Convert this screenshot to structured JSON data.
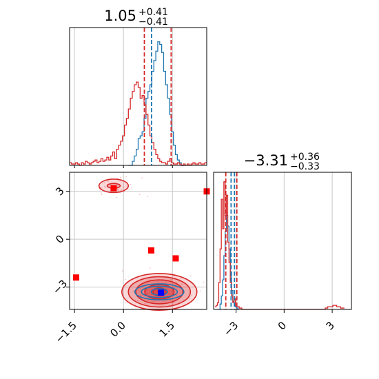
{
  "chart_data": [
    {
      "type": "histogram",
      "panel": "marginal-x",
      "title": {
        "main": "1.05",
        "plus": "+0.41",
        "minus": "−0.41"
      },
      "xlim": [
        -1.65,
        2.55
      ],
      "quantile_lines": {
        "red": [
          0.64,
          1.46
        ],
        "blue": [
          0.86
        ]
      },
      "series": [
        {
          "color": "#1f77b4",
          "bin_width": 0.06,
          "start": 0.15,
          "values": [
            0,
            0,
            0.03,
            0.07,
            0.12,
            0.2,
            0.22,
            0.25,
            0.35,
            0.5,
            0.55,
            0.6,
            0.7,
            0.78,
            0.85,
            0.92,
            0.9,
            0.84,
            0.7,
            0.6,
            0.5,
            0.38,
            0.25,
            0.15,
            0.08,
            0.04,
            0.02,
            0,
            0
          ]
        },
        {
          "color": "#d62728",
          "bin_width": 0.06,
          "start": -1.65,
          "values": [
            0.02,
            0.01,
            0.01,
            0.02,
            0.01,
            0,
            0.02,
            0.01,
            0.03,
            0.02,
            0.01,
            0.02,
            0.03,
            0.04,
            0.02,
            0.03,
            0.05,
            0.03,
            0.04,
            0.06,
            0.04,
            0.07,
            0.1,
            0.05,
            0.12,
            0.15,
            0.18,
            0.22,
            0.3,
            0.35,
            0.42,
            0.5,
            0.55,
            0.6,
            0.62,
            0.58,
            0.5,
            0.52,
            0.45,
            0.38,
            0.3,
            0.22,
            0.17,
            0.12,
            0.08,
            0.05,
            0.03,
            0.02,
            0.02,
            0.01,
            0.03,
            0.05,
            0.02,
            0.01,
            0.01,
            0.02,
            0.01,
            0,
            0.01,
            0,
            0.01,
            0,
            0.01,
            0.02,
            0.01,
            0.01,
            0.02,
            0.01,
            0.01,
            0.02
          ]
        }
      ]
    },
    {
      "type": "histogram",
      "panel": "marginal-y",
      "title": {
        "main": "−3.31",
        "plus": "+0.36",
        "minus": "−0.33"
      },
      "xlim": [
        -4.4,
        4.2
      ],
      "quantile_lines": {
        "red": [
          -3.64,
          -2.95
        ],
        "blue": [
          -3.31,
          -3.1
        ]
      },
      "series": [
        {
          "color": "#1f77b4",
          "bin_width": 0.08,
          "start": -4.08,
          "values": [
            0,
            0.04,
            0.1,
            0.22,
            0.4,
            0.58,
            0.7,
            0.62,
            0.45,
            0.28,
            0.14,
            0.06,
            0.03,
            0.02,
            0.01,
            0
          ]
        },
        {
          "color": "#d62728",
          "bin_width": 0.08,
          "start": -4.32,
          "values": [
            0.02,
            0.03,
            0.05,
            0.2,
            0.45,
            0.82,
            0.6,
            0.95,
            0.7,
            0.85,
            0.5,
            0.35,
            0.2,
            0.1,
            0.05,
            0.08,
            0.03,
            0.02,
            0.02,
            0.01,
            0.01,
            0,
            0,
            0,
            0,
            0,
            0,
            0,
            0,
            0,
            0,
            0,
            0,
            0,
            0,
            0,
            0,
            0,
            0,
            0,
            0,
            0,
            0,
            0,
            0,
            0,
            0,
            0,
            0,
            0,
            0,
            0,
            0,
            0,
            0,
            0,
            0,
            0,
            0,
            0,
            0,
            0,
            0,
            0,
            0,
            0,
            0,
            0,
            0,
            0,
            0,
            0,
            0,
            0,
            0,
            0,
            0,
            0,
            0,
            0,
            0,
            0,
            0,
            0,
            0,
            0,
            0.01,
            0.01,
            0.02,
            0.02,
            0.02,
            0.02,
            0.03,
            0.03,
            0.03,
            0.02,
            0.02,
            0.02,
            0.01,
            0.01,
            0.01
          ]
        }
      ]
    },
    {
      "type": "scatter",
      "panel": "joint",
      "xlim": [
        -1.65,
        2.55
      ],
      "ylim": [
        -4.4,
        4.2
      ],
      "xticks": [
        "−1.5",
        "0.0",
        "1.5"
      ],
      "xtick_values": [
        -1.5,
        0.0,
        1.5
      ],
      "yticks": [
        "−3",
        "0",
        "3"
      ],
      "ytick_values": [
        -3,
        0,
        3
      ],
      "contours": [
        {
          "color": "#d62728",
          "center": [
            1.1,
            -3.3
          ],
          "rx": [
            0.2,
            0.45,
            0.72,
            0.95,
            1.15
          ],
          "ry": [
            0.25,
            0.45,
            0.75,
            0.95,
            1.15
          ],
          "filled": true
        },
        {
          "color": "#1f77b4",
          "center": [
            1.1,
            -3.3
          ],
          "rx": [
            0.25,
            0.55,
            0.75
          ],
          "ry": [
            0.2,
            0.35,
            0.5
          ],
          "filled": false
        },
        {
          "color": "#d62728",
          "center": [
            -0.3,
            3.35
          ],
          "rx": [
            0.2,
            0.45
          ],
          "ry": [
            0.15,
            0.42
          ],
          "filled": true
        }
      ],
      "red_markers": [
        {
          "x": -1.45,
          "y": -2.4
        },
        {
          "x": -0.3,
          "y": 3.2
        },
        {
          "x": 0.85,
          "y": -0.7
        },
        {
          "x": 1.6,
          "y": -1.2
        },
        {
          "x": 2.55,
          "y": 3.0
        }
      ],
      "blue_marker": {
        "x": 1.15,
        "y": -3.35
      },
      "colors": {
        "red": "#d62728",
        "blue": "#1f77b4",
        "blue_marker": "#0000ff",
        "red_marker": "#ff0000",
        "grid": "#c8c8c8"
      }
    }
  ]
}
